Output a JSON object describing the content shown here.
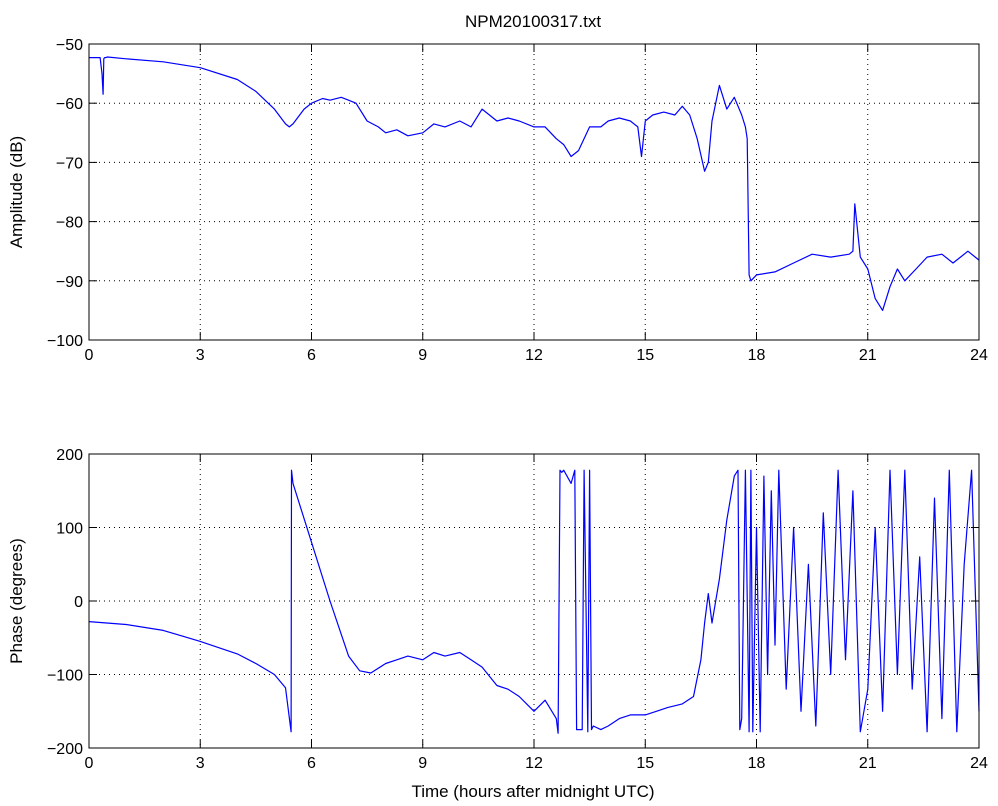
{
  "chart_data": [
    {
      "type": "line",
      "title": "NPM20100317.txt",
      "xlabel": "",
      "ylabel": "Amplitude (dB)",
      "xlim": [
        0,
        24
      ],
      "ylim": [
        -100,
        -50
      ],
      "xticks": [
        0,
        3,
        6,
        9,
        12,
        15,
        18,
        21,
        24
      ],
      "yticks": [
        -50,
        -60,
        -70,
        -80,
        -90,
        -100
      ],
      "grid": true,
      "series_color": "#0000ff",
      "series": [
        {
          "x": [
            0,
            0.3,
            0.35,
            0.38,
            0.4,
            0.42,
            0.45,
            0.5,
            1,
            2,
            3,
            4,
            4.5,
            5,
            5.3,
            5.4,
            5.5,
            5.8,
            6,
            6.3,
            6.5,
            6.8,
            7,
            7.2,
            7.5,
            7.8,
            8,
            8.3,
            8.6,
            9,
            9.3,
            9.6,
            10,
            10.3,
            10.6,
            11,
            11.3,
            11.6,
            12,
            12.3,
            12.6,
            12.8,
            13,
            13.2,
            13.5,
            13.8,
            14,
            14.3,
            14.6,
            14.8,
            14.9,
            15,
            15.2,
            15.5,
            15.8,
            16,
            16.2,
            16.4,
            16.6,
            16.7,
            16.8,
            17,
            17.2,
            17.4,
            17.6,
            17.7,
            17.75,
            17.8,
            17.85,
            18,
            18.5,
            19,
            19.5,
            20,
            20.5,
            20.6,
            20.65,
            20.8,
            21,
            21.2,
            21.4,
            21.6,
            21.8,
            22,
            22.3,
            22.6,
            23,
            23.3,
            23.5,
            23.7,
            24
          ],
          "y": [
            -52.3,
            -52.3,
            -55,
            -58.5,
            -52.5,
            -52.3,
            -52.3,
            -52.2,
            -52.5,
            -53,
            -54,
            -56,
            -58,
            -61,
            -63.5,
            -64,
            -63.5,
            -61,
            -60,
            -59.2,
            -59.5,
            -59,
            -59.5,
            -60,
            -63,
            -64,
            -65,
            -64.5,
            -65.5,
            -65,
            -63.5,
            -64,
            -63,
            -64,
            -61,
            -63,
            -62.5,
            -63,
            -64,
            -64,
            -66,
            -67,
            -69,
            -68,
            -64,
            -64,
            -63,
            -62.5,
            -63,
            -64,
            -69,
            -63,
            -62,
            -61.5,
            -62,
            -60.5,
            -62,
            -66,
            -71.5,
            -70,
            -63,
            -57,
            -61,
            -59,
            -62,
            -64,
            -66,
            -89,
            -90,
            -89,
            -88.5,
            -87,
            -85.5,
            -86,
            -85.5,
            -85,
            -77,
            -86,
            -88,
            -93,
            -95,
            -91,
            -88,
            -90,
            -88,
            -86,
            -85.5,
            -87,
            -86,
            -85,
            -86.5
          ]
        }
      ]
    },
    {
      "type": "line",
      "title": "",
      "xlabel": "Time (hours after midnight UTC)",
      "ylabel": "Phase (degrees)",
      "xlim": [
        0,
        24
      ],
      "ylim": [
        -200,
        200
      ],
      "xticks": [
        0,
        3,
        6,
        9,
        12,
        15,
        18,
        21,
        24
      ],
      "yticks": [
        200,
        100,
        0,
        -100,
        -200
      ],
      "grid": true,
      "series_color": "#0000ff",
      "series": [
        {
          "x": [
            0,
            1,
            2,
            3,
            4,
            4.5,
            5,
            5.3,
            5.45,
            5.46,
            5.5,
            6,
            6.5,
            7,
            7.3,
            7.6,
            8,
            8.3,
            8.6,
            9,
            9.3,
            9.6,
            10,
            10.3,
            10.6,
            11,
            11.3,
            11.6,
            12,
            12.3,
            12.6,
            12.65,
            12.7,
            12.75,
            12.8,
            13,
            13.1,
            13.15,
            13.3,
            13.35,
            13.45,
            13.5,
            13.55,
            13.6,
            13.8,
            14,
            14.3,
            14.6,
            15,
            15.3,
            15.6,
            16,
            16.3,
            16.5,
            16.6,
            16.7,
            16.8,
            17,
            17.2,
            17.4,
            17.5,
            17.55,
            17.6,
            17.7,
            17.8,
            17.85,
            17.9,
            18,
            18.1,
            18.2,
            18.3,
            18.4,
            18.5,
            18.6,
            18.8,
            19,
            19.2,
            19.4,
            19.6,
            19.8,
            20,
            20.2,
            20.4,
            20.6,
            20.8,
            21,
            21.2,
            21.4,
            21.6,
            21.8,
            22,
            22.2,
            22.4,
            22.6,
            22.8,
            23,
            23.2,
            23.4,
            23.6,
            23.8,
            24
          ],
          "y": [
            -28,
            -32,
            -40,
            -55,
            -72,
            -85,
            -100,
            -118,
            -178,
            178,
            160,
            80,
            0,
            -75,
            -95,
            -98,
            -85,
            -80,
            -75,
            -80,
            -70,
            -75,
            -70,
            -80,
            -90,
            -115,
            -120,
            -130,
            -150,
            -135,
            -160,
            -180,
            178,
            175,
            178,
            160,
            178,
            -175,
            -175,
            178,
            -178,
            178,
            -175,
            -170,
            -175,
            -170,
            -160,
            -155,
            -155,
            -150,
            -145,
            -140,
            -130,
            -80,
            -30,
            10,
            -30,
            30,
            110,
            170,
            178,
            -175,
            -160,
            178,
            -178,
            178,
            -178,
            100,
            -178,
            170,
            -100,
            150,
            -60,
            178,
            -120,
            100,
            -150,
            50,
            -170,
            120,
            -100,
            178,
            -80,
            150,
            -178,
            -120,
            100,
            -150,
            178,
            -100,
            178,
            -120,
            60,
            -178,
            140,
            -160,
            178,
            -178,
            50,
            178,
            -150
          ]
        }
      ]
    }
  ]
}
